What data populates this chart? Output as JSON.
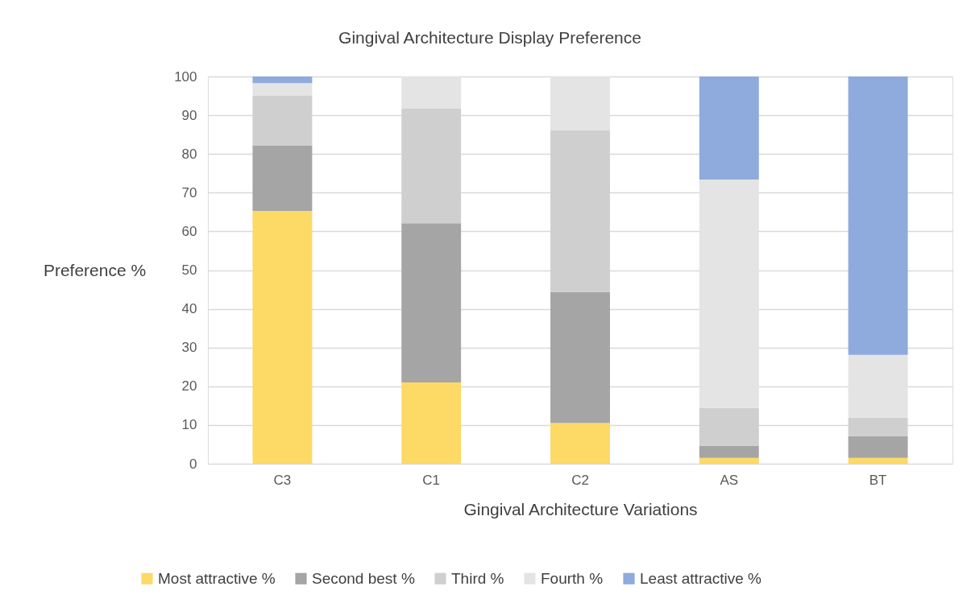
{
  "chart_data": {
    "type": "bar",
    "stacked": true,
    "title": "Gingival Architecture Display Preference",
    "xlabel": "Gingival Architecture Variations",
    "ylabel": "Preference %",
    "categories": [
      "C3",
      "C1",
      "C2",
      "AS",
      "BT"
    ],
    "series": [
      {
        "name": "Most attractive %",
        "color": "#fdd966",
        "values": [
          65.3,
          21.0,
          10.5,
          1.5,
          1.5
        ]
      },
      {
        "name": "Second best %",
        "color": "#a5a5a5",
        "values": [
          16.9,
          41.1,
          33.9,
          3.2,
          5.6
        ]
      },
      {
        "name": "Third %",
        "color": "#d0cfd0",
        "values": [
          12.8,
          29.6,
          41.8,
          9.7,
          4.8
        ]
      },
      {
        "name": "Fourth %",
        "color": "#e4e4e4",
        "values": [
          3.3,
          8.3,
          13.8,
          59.0,
          16.2
        ]
      },
      {
        "name": "Least attractive %",
        "color": "#8faadc",
        "values": [
          1.7,
          0,
          0,
          26.6,
          71.9
        ]
      }
    ],
    "ylim": [
      0,
      100
    ],
    "yticks": [
      0,
      10,
      20,
      30,
      40,
      50,
      60,
      70,
      80,
      90,
      100
    ],
    "grid": "y",
    "legend": "bottom"
  }
}
